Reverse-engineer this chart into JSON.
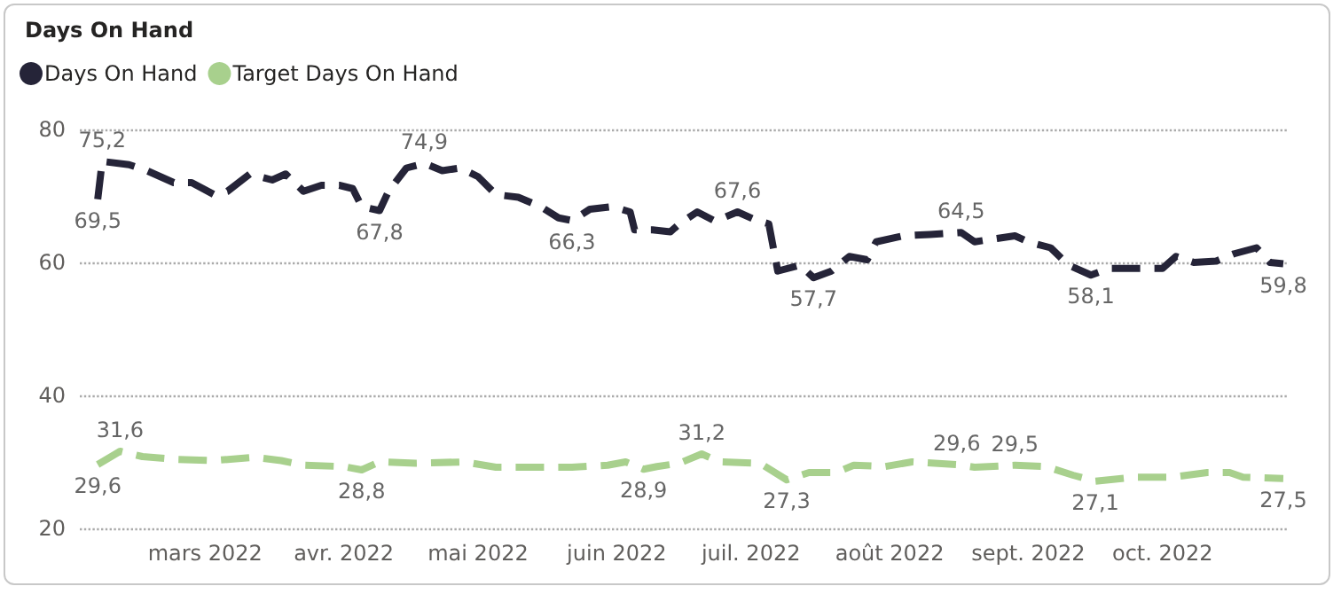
{
  "chart_data": {
    "type": "line",
    "title": "Days On Hand",
    "xlim": [
      "2022-02-01",
      "2022-10-29"
    ],
    "xticks": [
      {
        "value": "2022-03-01",
        "label": "mars 2022"
      },
      {
        "value": "2022-04-01",
        "label": "avr. 2022"
      },
      {
        "value": "2022-05-01",
        "label": "mai 2022"
      },
      {
        "value": "2022-06-01",
        "label": "juin 2022"
      },
      {
        "value": "2022-07-01",
        "label": "juil. 2022"
      },
      {
        "value": "2022-08-01",
        "label": "août 2022"
      },
      {
        "value": "2022-09-01",
        "label": "sept. 2022"
      },
      {
        "value": "2022-10-01",
        "label": "oct. 2022"
      }
    ],
    "ylim": [
      20,
      80
    ],
    "yticks": [
      20,
      40,
      60,
      80
    ],
    "grid": "y",
    "legend": "top left",
    "marker": "none",
    "line_style": "dashed",
    "series": [
      {
        "name": "Days On Hand",
        "color": "#252438",
        "x": [
          "2022-02-05",
          "2022-02-06",
          "2022-02-12",
          "2022-02-16",
          "2022-02-22",
          "2022-02-26",
          "2022-03-03",
          "2022-03-06",
          "2022-03-11",
          "2022-03-16",
          "2022-03-19",
          "2022-03-23",
          "2022-03-27",
          "2022-03-31",
          "2022-04-03",
          "2022-04-05",
          "2022-04-09",
          "2022-04-11",
          "2022-04-15",
          "2022-04-19",
          "2022-04-23",
          "2022-04-27",
          "2022-05-01",
          "2022-05-05",
          "2022-05-10",
          "2022-05-15",
          "2022-05-19",
          "2022-05-22",
          "2022-05-26",
          "2022-05-31",
          "2022-06-04",
          "2022-06-05",
          "2022-06-09",
          "2022-06-13",
          "2022-06-15",
          "2022-06-19",
          "2022-06-23",
          "2022-06-28",
          "2022-07-02",
          "2022-07-05",
          "2022-07-07",
          "2022-07-12",
          "2022-07-15",
          "2022-07-19",
          "2022-07-23",
          "2022-07-27",
          "2022-07-29",
          "2022-08-04",
          "2022-08-10",
          "2022-08-17",
          "2022-08-20",
          "2022-08-25",
          "2022-08-29",
          "2022-09-01",
          "2022-09-06",
          "2022-09-10",
          "2022-09-15",
          "2022-09-19",
          "2022-09-25",
          "2022-10-01",
          "2022-10-04",
          "2022-10-08",
          "2022-10-13",
          "2022-10-17",
          "2022-10-22",
          "2022-10-25",
          "2022-10-28"
        ],
        "values": [
          69.5,
          75.2,
          74.7,
          73.8,
          72,
          72,
          70.2,
          70.7,
          73.3,
          72.4,
          73.3,
          70.7,
          71.6,
          71.6,
          71.1,
          68.4,
          67.8,
          70.7,
          74.2,
          74.9,
          73.8,
          74.2,
          72.9,
          70.2,
          69.8,
          68.4,
          66.7,
          66.3,
          68,
          68.4,
          67.6,
          64.9,
          64.9,
          64.6,
          65.8,
          67.6,
          66.2,
          67.6,
          66.4,
          65.8,
          58.7,
          59.6,
          57.7,
          58.7,
          60.9,
          60.4,
          63.1,
          64,
          64.2,
          64.5,
          63.1,
          63.6,
          64,
          63.1,
          62.2,
          59.6,
          58.1,
          59.1,
          59.1,
          59.1,
          60.9,
          60,
          60.2,
          61.3,
          62.2,
          60,
          59.8
        ],
        "value_labels": [
          "69,5",
          "75,2",
          null,
          null,
          null,
          null,
          null,
          null,
          null,
          null,
          null,
          null,
          null,
          null,
          null,
          null,
          "67,8",
          null,
          null,
          "74,9",
          null,
          null,
          null,
          null,
          null,
          null,
          null,
          "66,3",
          null,
          null,
          null,
          null,
          null,
          null,
          null,
          null,
          null,
          "67,6",
          null,
          null,
          null,
          null,
          "57,7",
          null,
          null,
          null,
          null,
          null,
          null,
          "64,5",
          null,
          null,
          null,
          null,
          null,
          null,
          "58,1",
          null,
          null,
          null,
          null,
          null,
          null,
          null,
          null,
          null,
          "59,8"
        ]
      },
      {
        "name": "Target Days On Hand",
        "color": "#a8d08d",
        "x": [
          "2022-02-05",
          "2022-02-10",
          "2022-02-15",
          "2022-02-22",
          "2022-03-03",
          "2022-03-12",
          "2022-03-18",
          "2022-03-23",
          "2022-04-01",
          "2022-04-05",
          "2022-04-09",
          "2022-04-17",
          "2022-04-28",
          "2022-05-05",
          "2022-05-14",
          "2022-05-22",
          "2022-05-30",
          "2022-06-03",
          "2022-06-07",
          "2022-06-10",
          "2022-06-15",
          "2022-06-20",
          "2022-06-24",
          "2022-07-03",
          "2022-07-09",
          "2022-07-14",
          "2022-07-20",
          "2022-07-24",
          "2022-07-31",
          "2022-08-06",
          "2022-08-16",
          "2022-08-20",
          "2022-08-29",
          "2022-09-05",
          "2022-09-11",
          "2022-09-16",
          "2022-09-25",
          "2022-10-03",
          "2022-10-11",
          "2022-10-16",
          "2022-10-19",
          "2022-10-28"
        ],
        "values": [
          29.6,
          31.6,
          30.8,
          30.4,
          30.2,
          30.7,
          30.2,
          29.5,
          29.3,
          28.8,
          30,
          29.8,
          30,
          29.2,
          29.2,
          29.2,
          29.5,
          30,
          28.9,
          29.3,
          29.8,
          31.2,
          30,
          29.8,
          27.3,
          28.4,
          28.4,
          29.5,
          29.3,
          30,
          29.6,
          29.2,
          29.5,
          29.3,
          28,
          27.1,
          27.7,
          27.7,
          28.4,
          28.4,
          27.7,
          27.5
        ],
        "value_labels": [
          "29,6",
          "31,6",
          null,
          null,
          null,
          null,
          null,
          null,
          null,
          "28,8",
          null,
          null,
          null,
          null,
          null,
          null,
          null,
          null,
          "28,9",
          null,
          null,
          "31,2",
          null,
          null,
          "27,3",
          null,
          null,
          null,
          null,
          null,
          "29,6",
          null,
          "29,5",
          null,
          null,
          "27,1",
          null,
          null,
          null,
          null,
          null,
          "27,5"
        ]
      }
    ]
  }
}
